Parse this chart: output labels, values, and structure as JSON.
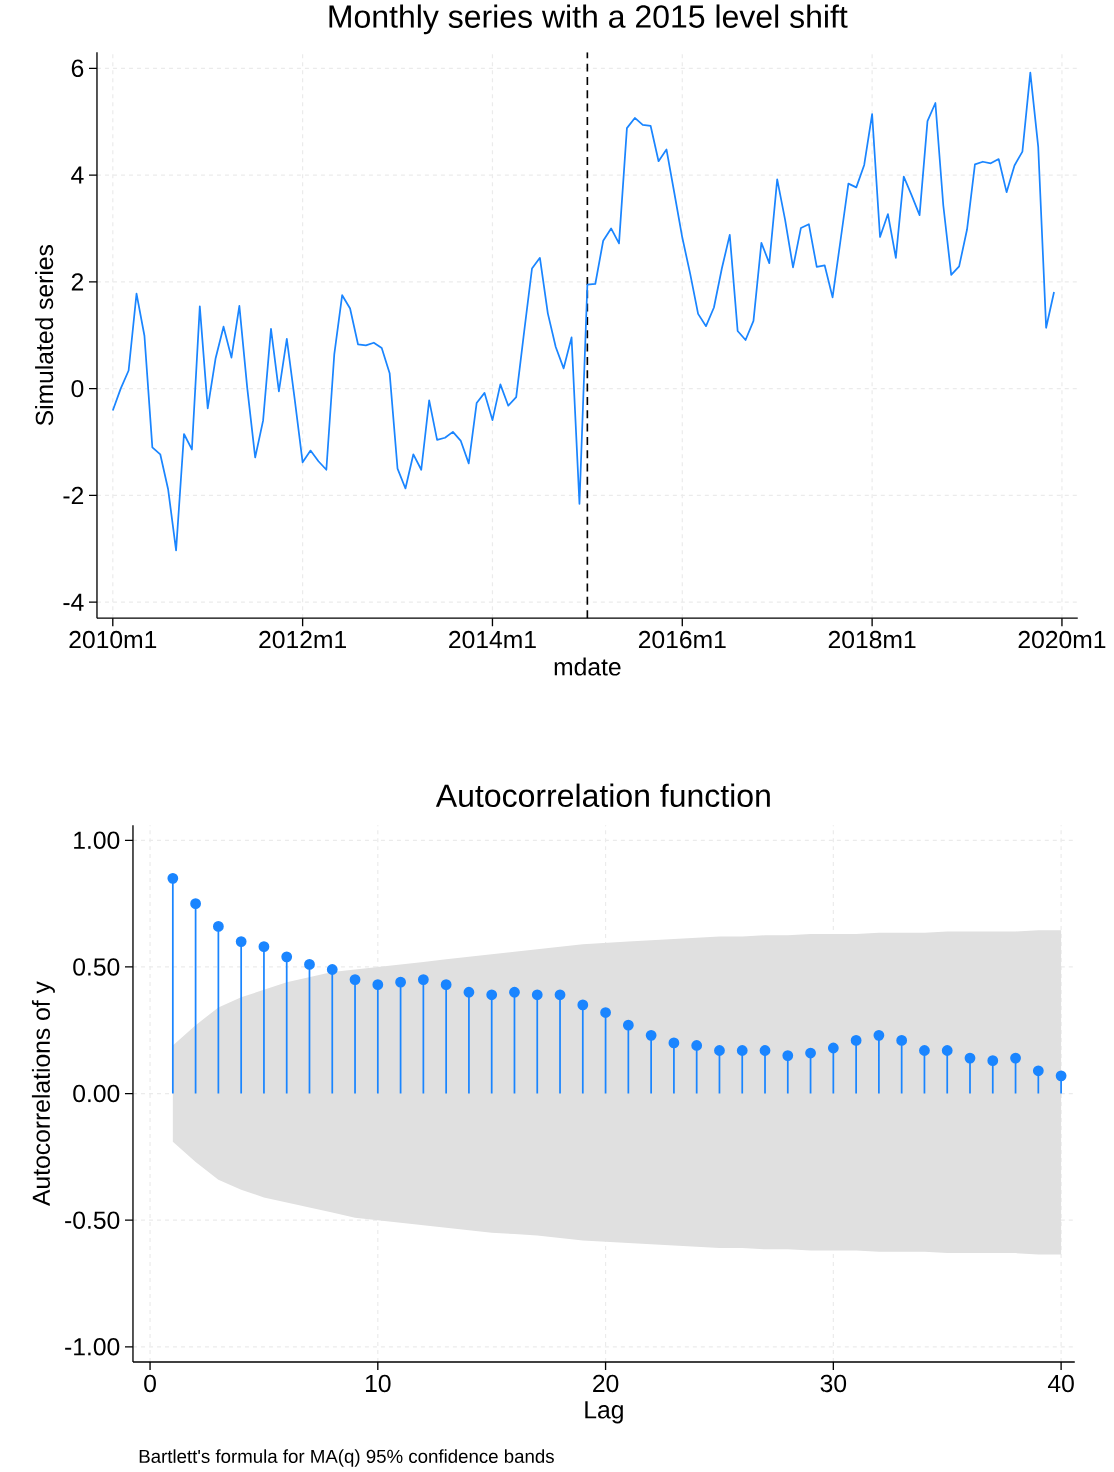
{
  "chart_data": [
    {
      "type": "line",
      "title": "Monthly series with a 2015 level shift",
      "xlabel": "mdate",
      "ylabel": "Simulated series",
      "x": [
        "2010-01",
        "2010-02",
        "2010-03",
        "2010-04",
        "2010-05",
        "2010-06",
        "2010-07",
        "2010-08",
        "2010-09",
        "2010-10",
        "2010-11",
        "2010-12",
        "2011-01",
        "2011-02",
        "2011-03",
        "2011-04",
        "2011-05",
        "2011-06",
        "2011-07",
        "2011-08",
        "2011-09",
        "2011-10",
        "2011-11",
        "2011-12",
        "2012-01",
        "2012-02",
        "2012-03",
        "2012-04",
        "2012-05",
        "2012-06",
        "2012-07",
        "2012-08",
        "2012-09",
        "2012-10",
        "2012-11",
        "2012-12",
        "2013-01",
        "2013-02",
        "2013-03",
        "2013-04",
        "2013-05",
        "2013-06",
        "2013-07",
        "2013-08",
        "2013-09",
        "2013-10",
        "2013-11",
        "2013-12",
        "2014-01",
        "2014-02",
        "2014-03",
        "2014-04",
        "2014-05",
        "2014-06",
        "2014-07",
        "2014-08",
        "2014-09",
        "2014-10",
        "2014-11",
        "2014-12",
        "2015-01",
        "2015-02",
        "2015-03",
        "2015-04",
        "2015-05",
        "2015-06",
        "2015-07",
        "2015-08",
        "2015-09",
        "2015-10",
        "2015-11",
        "2015-12",
        "2016-01",
        "2016-02",
        "2016-03",
        "2016-04",
        "2016-05",
        "2016-06",
        "2016-07",
        "2016-08",
        "2016-09",
        "2016-10",
        "2016-11",
        "2016-12",
        "2017-01",
        "2017-02",
        "2017-03",
        "2017-04",
        "2017-05",
        "2017-06",
        "2017-07",
        "2017-08",
        "2017-09",
        "2017-10",
        "2017-11",
        "2017-12",
        "2018-01",
        "2018-02",
        "2018-03",
        "2018-04",
        "2018-05",
        "2018-06",
        "2018-07",
        "2018-08",
        "2018-09",
        "2018-10",
        "2018-11",
        "2018-12",
        "2019-01",
        "2019-02",
        "2019-03",
        "2019-04",
        "2019-05",
        "2019-06",
        "2019-07",
        "2019-08",
        "2019-09",
        "2019-10",
        "2019-11",
        "2019-12"
      ],
      "series": [
        {
          "color": "#1a85ff",
          "values": [
            -0.41,
            0.0,
            0.34,
            1.78,
            0.99,
            -1.1,
            -1.23,
            -1.89,
            -3.03,
            -0.85,
            -1.14,
            1.54,
            -0.37,
            0.57,
            1.16,
            0.58,
            1.55,
            0.01,
            -1.29,
            -0.6,
            1.12,
            -0.05,
            0.93,
            -0.2,
            -1.38,
            -1.16,
            -1.36,
            -1.52,
            0.64,
            1.75,
            1.5,
            0.83,
            0.81,
            0.86,
            0.76,
            0.29,
            -1.5,
            -1.87,
            -1.23,
            -1.52,
            -0.22,
            -0.96,
            -0.92,
            -0.81,
            -0.98,
            -1.4,
            -0.27,
            -0.08,
            -0.59,
            0.08,
            -0.32,
            -0.16,
            1.06,
            2.25,
            2.45,
            1.41,
            0.78,
            0.38,
            0.96,
            -2.16,
            1.95,
            1.96,
            2.77,
            3.0,
            2.72,
            4.88,
            5.07,
            4.94,
            4.92,
            4.26,
            4.48,
            3.66,
            2.83,
            2.15,
            1.4,
            1.17,
            1.52,
            2.25,
            2.88,
            1.08,
            0.91,
            1.27,
            2.73,
            2.35,
            3.92,
            3.16,
            2.27,
            3.01,
            3.08,
            2.28,
            2.31,
            1.71,
            2.77,
            3.84,
            3.77,
            4.19,
            5.14,
            2.84,
            3.27,
            2.45,
            3.97,
            3.62,
            3.25,
            5.01,
            5.35,
            3.43,
            2.13,
            2.29,
            2.98,
            4.2,
            4.25,
            4.22,
            4.3,
            3.68,
            4.18,
            4.44,
            5.92,
            4.53,
            1.14,
            1.81
          ]
        }
      ],
      "xlim": [
        "2009-11",
        "2020-03"
      ],
      "ylim": [
        -4.3,
        6.3
      ],
      "xticks": [
        {
          "value": "2010-01",
          "label": "2010m1"
        },
        {
          "value": "2012-01",
          "label": "2012m1"
        },
        {
          "value": "2014-01",
          "label": "2014m1"
        },
        {
          "value": "2016-01",
          "label": "2016m1"
        },
        {
          "value": "2018-01",
          "label": "2018m1"
        },
        {
          "value": "2020-01",
          "label": "2020m1"
        }
      ],
      "yticks": [
        -4,
        -2,
        0,
        2,
        4,
        6
      ],
      "ref_lines": [
        {
          "axis": "x",
          "value": "2015-01",
          "color": "#000000",
          "line_style": "dashed"
        }
      ],
      "grid": true,
      "marker": "none",
      "line_style": "solid"
    },
    {
      "type": "lollipop",
      "title": "Autocorrelation function",
      "xlabel": "Lag",
      "ylabel": "Autocorrelations of y",
      "x": [
        1,
        2,
        3,
        4,
        5,
        6,
        7,
        8,
        9,
        10,
        11,
        12,
        13,
        14,
        15,
        16,
        17,
        18,
        19,
        20,
        21,
        22,
        23,
        24,
        25,
        26,
        27,
        28,
        29,
        30,
        31,
        32,
        33,
        34,
        35,
        36,
        37,
        38,
        39,
        40
      ],
      "series": [
        {
          "color": "#1a85ff",
          "values": [
            0.85,
            0.75,
            0.66,
            0.6,
            0.58,
            0.54,
            0.51,
            0.49,
            0.45,
            0.43,
            0.44,
            0.45,
            0.43,
            0.4,
            0.39,
            0.4,
            0.39,
            0.39,
            0.35,
            0.32,
            0.27,
            0.23,
            0.2,
            0.19,
            0.17,
            0.17,
            0.17,
            0.15,
            0.16,
            0.18,
            0.21,
            0.23,
            0.21,
            0.17,
            0.17,
            0.14,
            0.13,
            0.14,
            0.09,
            0.07
          ],
          "upper": [
            0.19,
            0.27,
            0.34,
            0.38,
            0.41,
            0.44,
            0.46,
            0.48,
            0.49,
            0.5,
            0.51,
            0.52,
            0.53,
            0.54,
            0.55,
            0.56,
            0.57,
            0.58,
            0.59,
            0.595,
            0.6,
            0.605,
            0.61,
            0.615,
            0.62,
            0.62,
            0.625,
            0.625,
            0.63,
            0.63,
            0.63,
            0.635,
            0.635,
            0.635,
            0.64,
            0.64,
            0.64,
            0.64,
            0.645,
            0.645
          ],
          "lower": [
            -0.19,
            -0.27,
            -0.34,
            -0.38,
            -0.41,
            -0.43,
            -0.45,
            -0.47,
            -0.49,
            -0.5,
            -0.51,
            -0.52,
            -0.53,
            -0.54,
            -0.55,
            -0.555,
            -0.56,
            -0.57,
            -0.58,
            -0.585,
            -0.59,
            -0.595,
            -0.6,
            -0.605,
            -0.61,
            -0.61,
            -0.615,
            -0.615,
            -0.62,
            -0.62,
            -0.62,
            -0.625,
            -0.625,
            -0.625,
            -0.63,
            -0.63,
            -0.63,
            -0.63,
            -0.635,
            -0.635
          ]
        }
      ],
      "xlim": [
        -0.75,
        40.6
      ],
      "ylim": [
        -1.06,
        1.06
      ],
      "xticks": [
        0,
        10,
        20,
        30,
        40
      ],
      "yticks": [
        {
          "value": -1,
          "label": "-1.00"
        },
        {
          "value": -0.5,
          "label": "-0.50"
        },
        {
          "value": 0,
          "label": "0.00"
        },
        {
          "value": 0.5,
          "label": "0.50"
        },
        {
          "value": 1,
          "label": "1.00"
        }
      ],
      "annotations": [
        "Bartlett's formula for MA(q) 95% confidence bands"
      ],
      "grid": true,
      "marker": "circle"
    }
  ]
}
